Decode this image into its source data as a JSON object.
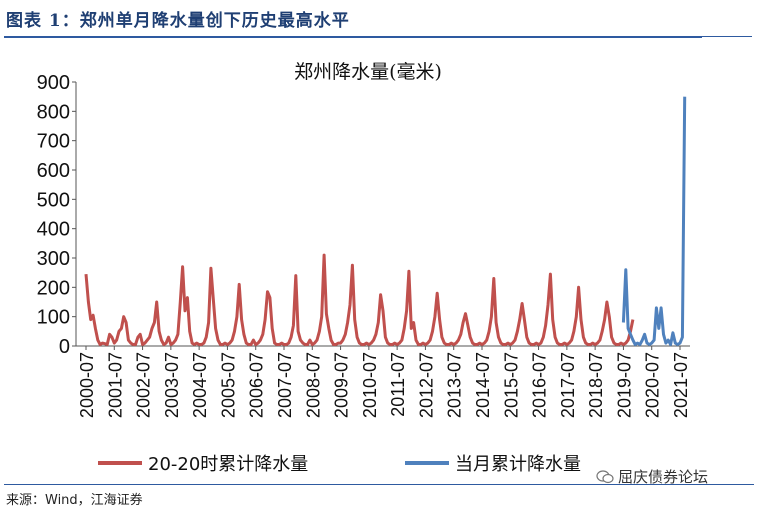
{
  "figure_title": "图表 1：郑州单月降水量创下历史最高水平",
  "source": "来源：Wind，江海证券",
  "watermark": "屈庆债券论坛",
  "colors": {
    "hist_series": "#c0504d",
    "current_series": "#4f81bd",
    "title_blue": "#1f3f73"
  },
  "chart_data": {
    "type": "line",
    "title": "郑州降水量(毫米)",
    "ylim": [
      0,
      900
    ],
    "yticks": [
      "0",
      "100",
      "200",
      "300",
      "400",
      "500",
      "600",
      "700",
      "800",
      "900"
    ],
    "xticks": [
      "2000-07",
      "2001-07",
      "2002-07",
      "2003-07",
      "2004-07",
      "2005-07",
      "2006-07",
      "2007-07",
      "2008-07",
      "2009-07",
      "2010-07",
      "2011-07",
      "2012-07",
      "2013-07",
      "2014-07",
      "2015-07",
      "2016-07",
      "2017-07",
      "2018-07",
      "2019-07",
      "2020-07",
      "2021-07"
    ],
    "start": "2000-07",
    "legend_position": "bottom",
    "series": [
      {
        "name": "20-20时累计降水量",
        "values": [
          245,
          150,
          90,
          105,
          60,
          20,
          5,
          10,
          8,
          5,
          40,
          30,
          10,
          20,
          50,
          60,
          100,
          80,
          20,
          10,
          5,
          5,
          30,
          40,
          5,
          10,
          20,
          30,
          60,
          80,
          150,
          50,
          20,
          5,
          10,
          30,
          5,
          10,
          20,
          40,
          150,
          270,
          120,
          165,
          50,
          10,
          5,
          10,
          5,
          5,
          10,
          30,
          80,
          265,
          160,
          60,
          20,
          5,
          5,
          10,
          5,
          10,
          20,
          50,
          100,
          210,
          90,
          40,
          10,
          5,
          5,
          20,
          5,
          10,
          20,
          40,
          90,
          185,
          165,
          60,
          10,
          5,
          5,
          10,
          5,
          5,
          10,
          30,
          70,
          240,
          50,
          20,
          10,
          5,
          5,
          20,
          5,
          10,
          20,
          50,
          100,
          310,
          110,
          60,
          20,
          5,
          5,
          10,
          10,
          20,
          40,
          80,
          140,
          275,
          90,
          30,
          10,
          5,
          5,
          10,
          5,
          10,
          20,
          40,
          80,
          175,
          120,
          30,
          10,
          5,
          5,
          10,
          5,
          10,
          20,
          60,
          120,
          255,
          60,
          80,
          20,
          5,
          5,
          10,
          5,
          10,
          20,
          50,
          100,
          180,
          90,
          30,
          10,
          5,
          5,
          10,
          5,
          10,
          20,
          40,
          80,
          110,
          70,
          30,
          10,
          5,
          5,
          10,
          5,
          10,
          20,
          50,
          100,
          230,
          80,
          30,
          10,
          5,
          5,
          10,
          5,
          10,
          20,
          50,
          90,
          145,
          90,
          30,
          10,
          5,
          5,
          10,
          5,
          10,
          30,
          70,
          140,
          245,
          90,
          30,
          10,
          5,
          5,
          10,
          5,
          10,
          20,
          50,
          100,
          200,
          90,
          30,
          10,
          5,
          5,
          10,
          5,
          10,
          20,
          50,
          90,
          150,
          100,
          30,
          10,
          5,
          5,
          10,
          5,
          10,
          20,
          50,
          90
        ]
      },
      {
        "name": "当月累计降水量",
        "values": [
          80,
          260,
          60,
          40,
          20,
          5,
          10,
          5,
          20,
          40,
          10,
          5,
          10,
          20,
          130,
          60,
          130,
          40,
          10,
          20,
          5,
          45,
          10,
          5,
          10,
          30,
          850
        ]
      }
    ]
  }
}
